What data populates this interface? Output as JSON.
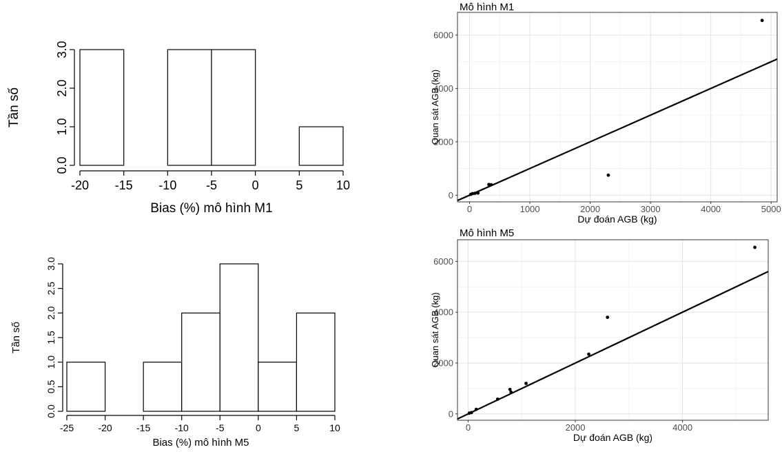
{
  "chart_data": [
    {
      "type": "bar",
      "subtype": "histogram",
      "bins": [
        [
          -20,
          -15
        ],
        [
          -15,
          -10
        ],
        [
          -10,
          -5
        ],
        [
          -5,
          0
        ],
        [
          0,
          5
        ],
        [
          5,
          10
        ]
      ],
      "values": [
        3,
        0,
        3,
        3,
        0,
        1
      ],
      "xlabel": "Bias (%) mô hình M1",
      "ylabel": "Tần số",
      "xlim": [
        -20,
        10
      ],
      "ylim": [
        0,
        3
      ],
      "xticks": [
        -20,
        -15,
        -10,
        -5,
        0,
        5,
        10
      ],
      "xtick_labels": [
        "-20",
        "-15",
        "-10",
        "-5",
        "0",
        "5",
        "10"
      ],
      "yticks": [
        0,
        1,
        2,
        3
      ],
      "ytick_labels": [
        "0.0",
        "1.0",
        "2.0",
        "3.0"
      ],
      "grid": false
    },
    {
      "type": "bar",
      "subtype": "histogram",
      "bins": [
        [
          -25,
          -20
        ],
        [
          -20,
          -15
        ],
        [
          -15,
          -10
        ],
        [
          -10,
          -5
        ],
        [
          -5,
          0
        ],
        [
          0,
          5
        ],
        [
          5,
          10
        ]
      ],
      "values": [
        1,
        0,
        1,
        2,
        3,
        1,
        2
      ],
      "xlabel": "Bias (%) mô hình M5",
      "ylabel": "Tần số",
      "xlim": [
        -25,
        10
      ],
      "ylim": [
        0,
        3
      ],
      "xticks": [
        -25,
        -20,
        -15,
        -10,
        -5,
        0,
        5,
        10
      ],
      "xtick_labels": [
        "-25",
        "-20",
        "-15",
        "-10",
        "-5",
        "0",
        "5",
        "10"
      ],
      "yticks": [
        0,
        0.5,
        1,
        1.5,
        2,
        2.5,
        3
      ],
      "ytick_labels": [
        "0.0",
        "0.5",
        "1.0",
        "1.5",
        "2.0",
        "2.5",
        "3.0"
      ],
      "grid": false
    },
    {
      "type": "scatter",
      "title": "Mô hình M1",
      "xlabel": "Dự đoán AGB (kg)",
      "ylabel": "Quan sát AGB (kg)",
      "xlim": [
        -200,
        5100
      ],
      "ylim": [
        -250,
        6850
      ],
      "xticks": [
        0,
        1000,
        2000,
        3000,
        4000,
        5000
      ],
      "xtick_labels": [
        "0",
        "1000",
        "2000",
        "3000",
        "4000",
        "5000"
      ],
      "yticks": [
        0,
        2000,
        4000,
        6000
      ],
      "ytick_labels": [
        "0",
        "2000",
        "4000",
        "6000"
      ],
      "points": [
        [
          20,
          30
        ],
        [
          50,
          60
        ],
        [
          90,
          70
        ],
        [
          140,
          80
        ],
        [
          320,
          400
        ],
        [
          360,
          390
        ],
        [
          2300,
          750
        ],
        [
          4850,
          6550
        ]
      ],
      "line": {
        "intercept": 0,
        "slope": 1
      },
      "grid": true
    },
    {
      "type": "scatter",
      "title": "Mô hình M5",
      "xlabel": "Dự đoán AGB (kg)",
      "ylabel": "Quan sát AGB (kg)",
      "xlim": [
        -200,
        5600
      ],
      "ylim": [
        -250,
        6850
      ],
      "xticks": [
        0,
        2000,
        4000
      ],
      "xtick_labels": [
        "0",
        "2000",
        "4000"
      ],
      "yticks": [
        0,
        2000,
        4000,
        6000
      ],
      "ytick_labels": [
        "0",
        "2000",
        "4000",
        "6000"
      ],
      "points": [
        [
          20,
          30
        ],
        [
          60,
          50
        ],
        [
          150,
          180
        ],
        [
          550,
          580
        ],
        [
          780,
          960
        ],
        [
          800,
          850
        ],
        [
          1080,
          1200
        ],
        [
          2250,
          2350
        ],
        [
          2600,
          3800
        ],
        [
          5350,
          6550
        ]
      ],
      "line": {
        "intercept": 0,
        "slope": 1
      },
      "grid": true
    }
  ]
}
